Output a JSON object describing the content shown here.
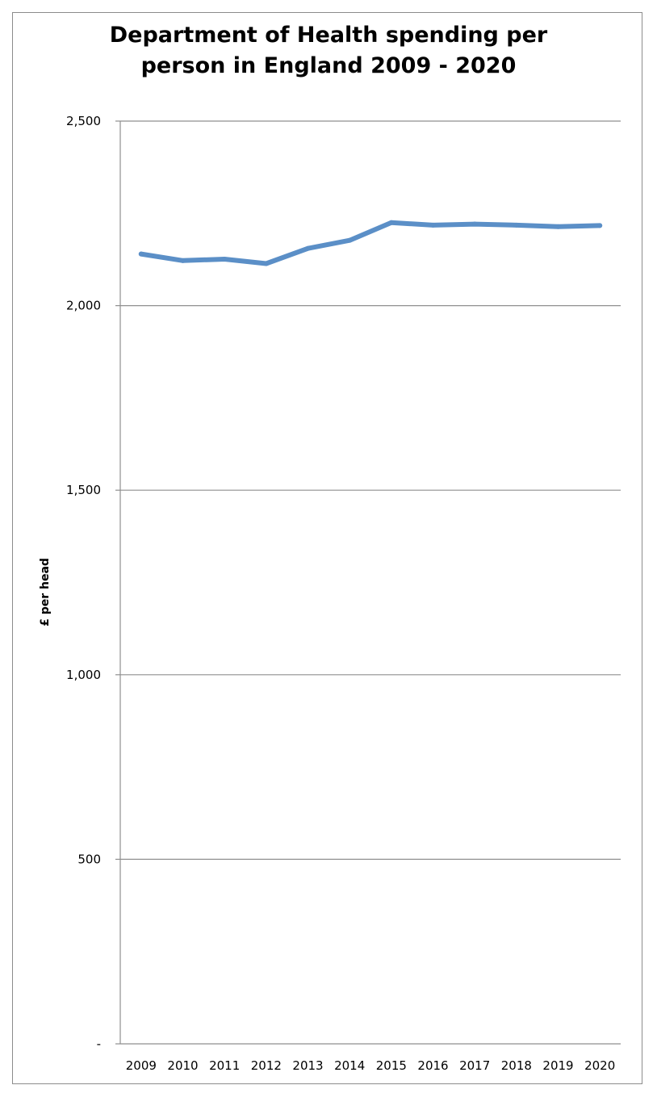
{
  "chart_data": {
    "type": "line",
    "title_lines": [
      "Department of Health spending per",
      "person in England 2009 - 2020"
    ],
    "xlabel": "",
    "ylabel": "£ per head",
    "categories": [
      "2009",
      "2010",
      "2011",
      "2012",
      "2013",
      "2014",
      "2015",
      "2016",
      "2017",
      "2018",
      "2019",
      "2020"
    ],
    "series": [
      {
        "values": [
          2140,
          2122,
          2126,
          2114,
          2155,
          2177,
          2225,
          2218,
          2221,
          2218,
          2214,
          2217
        ],
        "color": "#5b8fc7"
      }
    ],
    "ylim": [
      0,
      2500
    ],
    "yticks": [
      0,
      500,
      1000,
      1500,
      2000,
      2500
    ],
    "ytick_labels": [
      "-",
      "500",
      "1,000",
      "1,500",
      "2,000",
      "2,500"
    ],
    "grid": true,
    "legend": "none"
  }
}
